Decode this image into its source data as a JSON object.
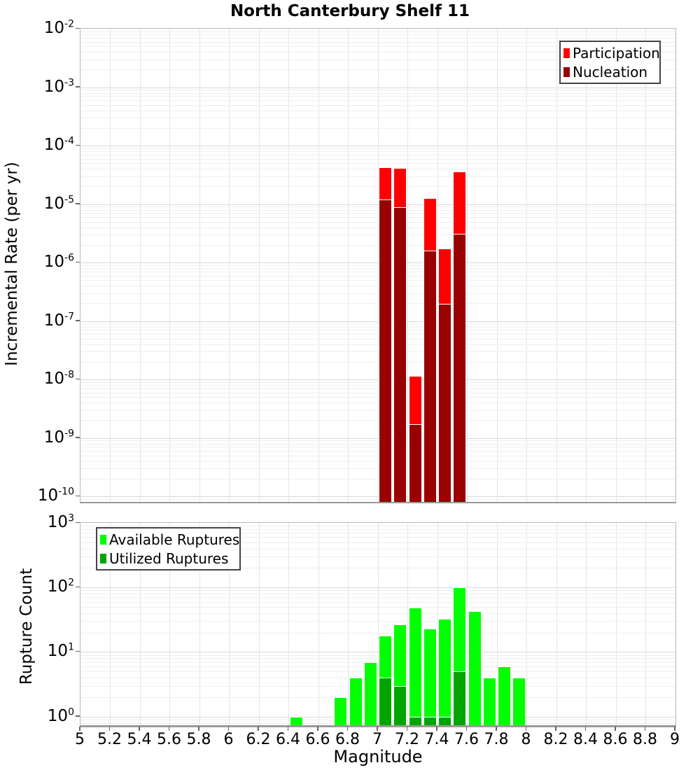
{
  "title": "North Canterbury Shelf 11",
  "xlabel": "Magnitude",
  "x_tick_labels": [
    "5",
    "5.2",
    "5.4",
    "5.6",
    "5.8",
    "6",
    "6.2",
    "6.4",
    "6.6",
    "6.8",
    "7",
    "7.2",
    "7.4",
    "7.6",
    "7.8",
    "8",
    "8.2",
    "8.4",
    "8.6",
    "8.8",
    "9"
  ],
  "top_chart": {
    "ylabel": "Incremental Rate (per yr)",
    "y_tick_exponents": [
      "-2",
      "-3",
      "-4",
      "-5",
      "-6",
      "-7",
      "-8",
      "-9",
      "-10"
    ],
    "legend": [
      {
        "label": "Participation",
        "color": "#ff0000"
      },
      {
        "label": "Nucleation",
        "color": "#990000"
      }
    ]
  },
  "bottom_chart": {
    "ylabel": "Rupture Count",
    "y_tick_exponents": [
      "3",
      "2",
      "1",
      "0"
    ],
    "legend": [
      {
        "label": "Available Ruptures",
        "color": "#00ff00"
      },
      {
        "label": "Utilized Ruptures",
        "color": "#00a500"
      }
    ]
  },
  "chart_data": [
    {
      "type": "bar",
      "title": "North Canterbury Shelf 11",
      "xlabel": "Magnitude",
      "ylabel": "Incremental Rate (per yr)",
      "yscale": "log",
      "xlim": [
        5,
        9
      ],
      "ylim": [
        1e-10,
        0.01
      ],
      "x_tick_step": 0.2,
      "grid": true,
      "legend_position": "top-right",
      "bin_width": 0.1,
      "bin_starts": [
        7.0,
        7.1,
        7.2,
        7.3,
        7.4,
        7.5
      ],
      "series": [
        {
          "name": "Participation",
          "color": "#ff0000",
          "values": [
            4.3e-05,
            4.1e-05,
            1.15e-08,
            1.25e-05,
            1.75e-06,
            3.6e-05
          ]
        },
        {
          "name": "Nucleation",
          "color": "#990000",
          "values": [
            1.2e-05,
            8.8e-06,
            1.7e-09,
            1.6e-06,
            1.95e-07,
            3.1e-06
          ]
        }
      ]
    },
    {
      "type": "bar",
      "title": "",
      "xlabel": "Magnitude",
      "ylabel": "Rupture Count",
      "yscale": "log",
      "xlim": [
        5,
        9
      ],
      "ylim": [
        1,
        1000
      ],
      "x_tick_step": 0.2,
      "grid": true,
      "legend_position": "top-left",
      "bin_width": 0.1,
      "bin_starts": [
        6.4,
        6.7,
        6.8,
        6.9,
        7.0,
        7.1,
        7.2,
        7.3,
        7.4,
        7.5,
        7.6,
        7.7,
        7.8,
        7.9
      ],
      "series": [
        {
          "name": "Available Ruptures",
          "color": "#00ff00",
          "values": [
            1,
            2,
            4,
            7,
            18,
            27,
            49,
            23,
            33,
            100,
            43,
            4,
            6,
            4
          ]
        },
        {
          "name": "Utilized Ruptures",
          "color": "#00a500",
          "values": [
            0,
            0,
            0,
            0,
            4,
            3,
            1,
            1,
            1,
            5,
            0,
            0,
            0,
            0
          ]
        }
      ]
    }
  ]
}
